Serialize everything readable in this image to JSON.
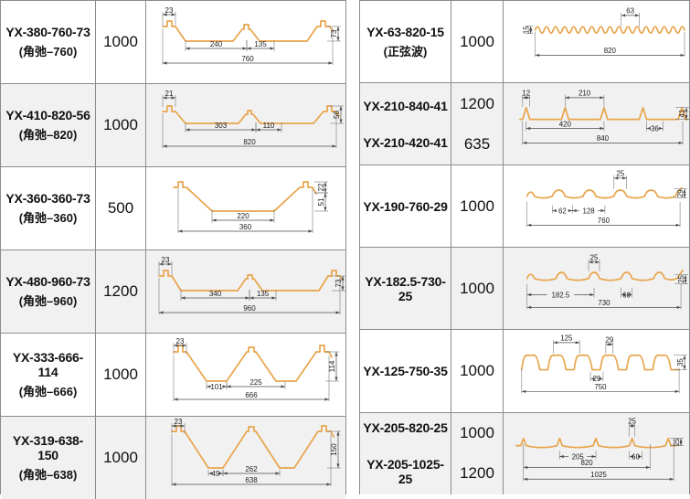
{
  "colors": {
    "profile_stroke": "#E8A44B",
    "row_alt_bg": "#F1F1F1",
    "table_border": "#8C8C8C",
    "dimension_line": "#4D4D4D",
    "text": "#111111"
  },
  "left_table": {
    "rows": [
      {
        "model": "YX-380-760-73",
        "alias": "(角弛–760)",
        "qty": "1000",
        "dims": {
          "top": "23",
          "w1": "240",
          "w2": "135",
          "total": "760",
          "height": "73"
        }
      },
      {
        "model": "YX-410-820-56",
        "alias": "(角弛–820)",
        "qty": "1000",
        "dims": {
          "top": "21",
          "w1": "303",
          "w2": "110",
          "total": "820",
          "height": "56"
        }
      },
      {
        "model": "YX-360-360-73",
        "alias": "(角弛–360)",
        "qty": "500",
        "dims": {
          "w1": "220",
          "total": "360",
          "h1": "22",
          "h2": "51"
        }
      },
      {
        "model": "YX-480-960-73",
        "alias": "(角弛–960)",
        "qty": "1200",
        "dims": {
          "top": "23",
          "w1": "340",
          "w2": "135",
          "total": "960",
          "height": "73"
        }
      },
      {
        "model": "YX-333-666-114",
        "alias": "(角弛–666)",
        "qty": "1000",
        "dims": {
          "top": "23",
          "w1": "101",
          "w2": "225",
          "total": "666",
          "height": "114"
        }
      },
      {
        "model": "YX-319-638-150",
        "alias": "(角弛–638)",
        "qty": "1000",
        "dims": {
          "top": "23",
          "w1": "49",
          "w2": "262",
          "total": "638",
          "height": "150"
        }
      }
    ]
  },
  "right_table": {
    "rows": [
      {
        "model": "YX-63-820-15",
        "alias": "(正弦波)",
        "qty": "1000",
        "dims": {
          "height": "15",
          "pitch": "63",
          "total": "820"
        }
      },
      {
        "model": "YX-210-840-41",
        "model2": "YX-210-420-41",
        "qty": "1200",
        "qty2": "635",
        "dims": {
          "top": "12",
          "pitch": "210",
          "w1": "420",
          "w2": "36",
          "total": "840",
          "height": "41"
        }
      },
      {
        "model": "YX-190-760-29",
        "qty": "1000",
        "dims": {
          "top": "25",
          "w1": "62",
          "w2": "128",
          "total": "760",
          "height": "29"
        }
      },
      {
        "model": "YX-182.5-730-25",
        "qty": "1000",
        "dims": {
          "top": "25",
          "w1": "182.5",
          "w2": "60",
          "total": "730",
          "height": "25"
        }
      },
      {
        "model": "YX-125-750-35",
        "qty": "1000",
        "dims": {
          "pitch": "125",
          "top": "29",
          "w1": "29",
          "total": "750",
          "height": "35"
        }
      },
      {
        "model": "YX-205-820-25",
        "model2": "YX-205-1025-25",
        "qty": "1000",
        "qty2": "1200",
        "dims": {
          "top": "25",
          "w1": "205",
          "w2": "60",
          "total1": "820",
          "total2": "1025",
          "height": "25"
        }
      }
    ]
  }
}
